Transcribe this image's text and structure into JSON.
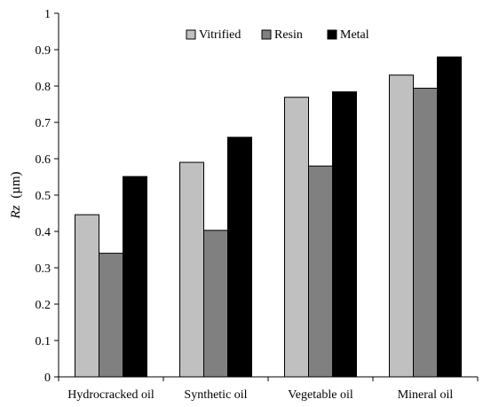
{
  "chart_data": {
    "type": "bar",
    "categories": [
      "Hydrocracked oil",
      "Synthetic oil",
      "Vegetable oil",
      "Mineral oil"
    ],
    "series": [
      {
        "name": "Vitrified",
        "values": [
          0.446,
          0.59,
          0.769,
          0.83
        ],
        "color": "#c0c0c0"
      },
      {
        "name": "Resin",
        "values": [
          0.34,
          0.403,
          0.58,
          0.794
        ],
        "color": "#808080"
      },
      {
        "name": "Metal",
        "values": [
          0.551,
          0.659,
          0.784,
          0.88
        ],
        "color": "#000000"
      }
    ],
    "ylabel_symbol": "Rz",
    "ylabel_unit": "(µm)",
    "ylim": [
      0,
      1
    ],
    "yticks": [
      "0",
      "0.1",
      "0.2",
      "0.3",
      "0.4",
      "0.5",
      "0.6",
      "0.7",
      "0.8",
      "0.9",
      "1"
    ],
    "grid": false,
    "legend_position": "top-center"
  }
}
